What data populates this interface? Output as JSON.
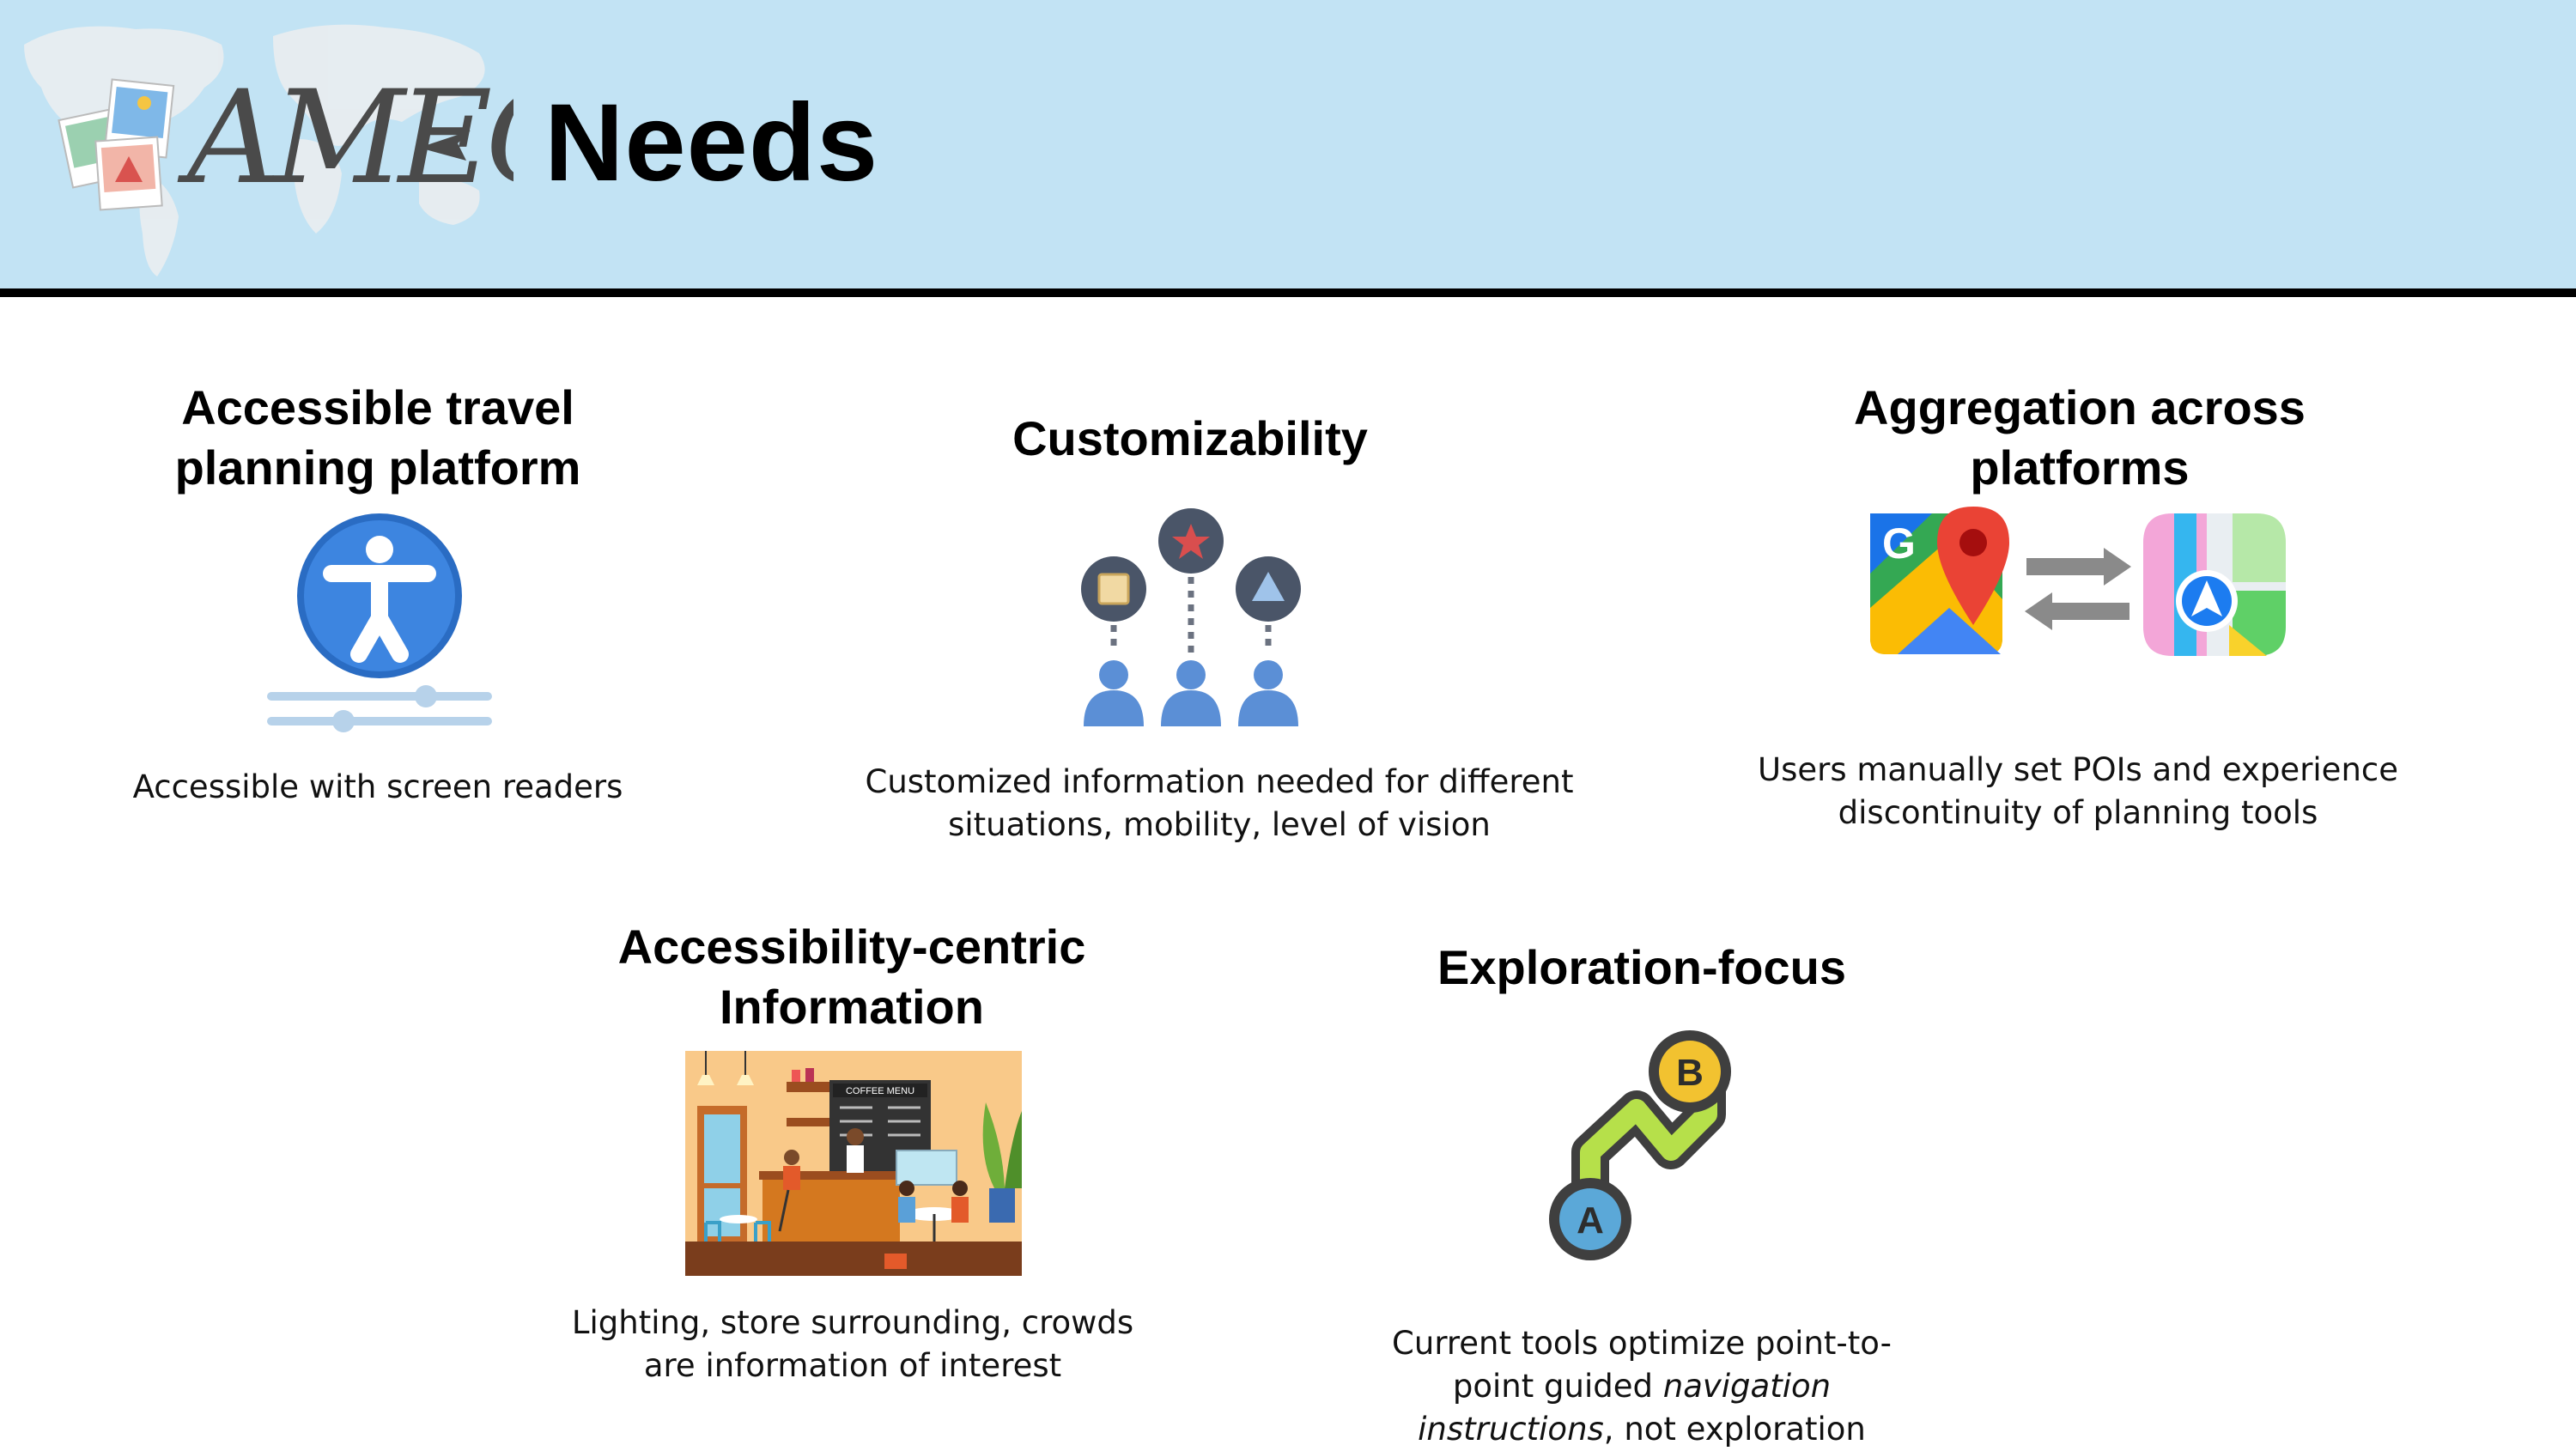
{
  "header": {
    "logo_text": "AMEC",
    "title": "Needs"
  },
  "cards": [
    {
      "title_line1": "Accessible travel",
      "title_line2": "planning platform",
      "icon": "accessibility-icon",
      "description": "Accessible with screen readers"
    },
    {
      "title_line1": "Customizability",
      "icon": "personalized-users-icon",
      "description_line1": "Customized information needed for different",
      "description_line2": "situations, mobility, level of vision"
    },
    {
      "title_line1": "Aggregation across",
      "title_line2": "platforms",
      "icon": "maps-sync-icon",
      "description_line1": "Users manually set POIs and experience",
      "description_line2": "discontinuity of planning tools"
    },
    {
      "title_line1": "Accessibility-centric",
      "title_line2": "Information",
      "icon": "coffee-shop-illustration",
      "description_line1": "Lighting, store surrounding, crowds",
      "description_line2": "are information of interest"
    },
    {
      "title_line1": "Exploration-focus",
      "icon": "route-a-to-b-icon",
      "description_line1": "Current tools optimize point-to-",
      "description_line2a": "point guided ",
      "description_line2b": "navigation",
      "description_line3a": "instructions",
      "description_line3b": ", not exploration"
    }
  ],
  "illustration_text": {
    "coffee_menu": "COFFEE MENU",
    "route_start": "A",
    "route_end": "B",
    "google_g": "G"
  },
  "colors": {
    "header_bg": "#c2e3f4",
    "accent_blue": "#3d85e0",
    "person_blue": "#5b8fd6",
    "dark_circle": "#4a5568"
  }
}
